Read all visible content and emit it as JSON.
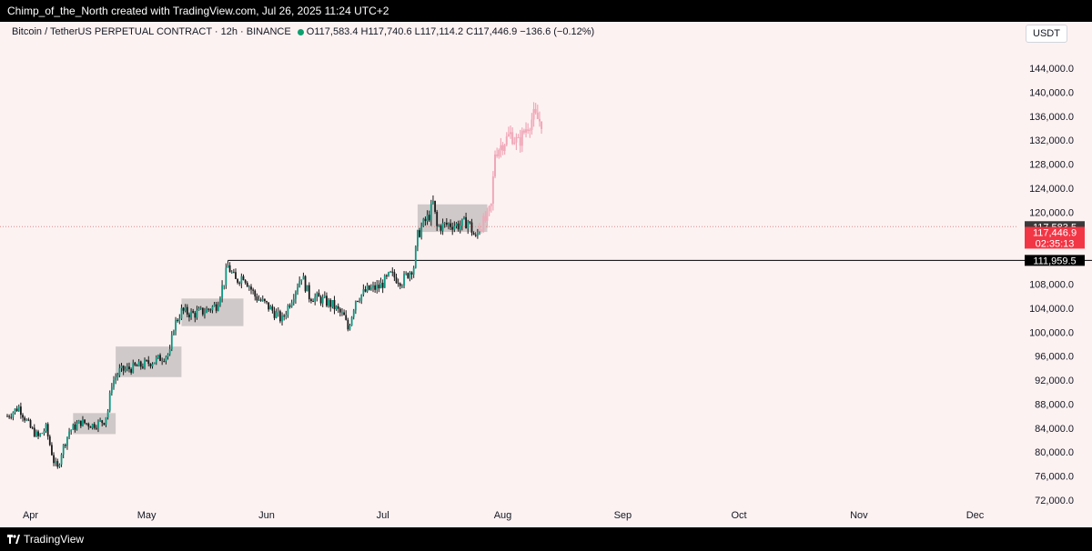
{
  "header": {
    "attribution": "Chimp_of_the_North created with TradingView.com, Jul 26, 2025 11:24 UTC+2"
  },
  "legend": {
    "symbol": "Bitcoin / TetherUS PERPETUAL CONTRACT · 12h · BINANCE",
    "ohlc": "O117,583.4  H117,740.6  L117,114.2  C117,446.9  −136.6 (−0.12%)"
  },
  "currency_button": "USDT",
  "footer": {
    "brand": "TradingView"
  },
  "chart_data": {
    "type": "candlestick",
    "interval": "12h",
    "grid": false,
    "y_axis": {
      "position": "right",
      "range": [
        70000,
        145000
      ],
      "tick_values": [
        72000,
        76000,
        80000,
        84000,
        88000,
        92000,
        96000,
        100000,
        104000,
        108000,
        112000,
        116000,
        120000,
        124000,
        128000,
        132000,
        136000,
        140000,
        144000
      ],
      "tick_labels": [
        "72,000.0",
        "76,000.0",
        "80,000.0",
        "84,000.0",
        "88,000.0",
        "92,000.0",
        "96,000.0",
        "100,000.0",
        "104,000.0",
        "108,000.0",
        "112,000.0",
        "116,000.0",
        "120,000.0",
        "124,000.0",
        "128,000.0",
        "132,000.0",
        "136,000.0",
        "140,000.0",
        "144,000.0"
      ]
    },
    "x_axis": {
      "range": [
        "2025-03-26",
        "2025-12-31"
      ],
      "tick_labels": [
        "Apr",
        "May",
        "Jun",
        "Jul",
        "Aug",
        "Sep",
        "Oct",
        "Nov",
        "Dec"
      ],
      "tick_dates": [
        "2025-04-01",
        "2025-05-01",
        "2025-06-01",
        "2025-07-01",
        "2025-08-01",
        "2025-09-01",
        "2025-10-01",
        "2025-11-01",
        "2025-12-01"
      ]
    },
    "colors": {
      "up": "#089981",
      "down": "#f23645",
      "candle_body": "#1a1a1a",
      "projection": "#f0a8b8",
      "consolidation_box": "#c8c2c2",
      "background": "#fdf2f2"
    },
    "close_series": [
      {
        "date": "2025-03-26",
        "close": 86000
      },
      {
        "date": "2025-03-29",
        "close": 87500
      },
      {
        "date": "2025-04-01",
        "close": 84000
      },
      {
        "date": "2025-04-03",
        "close": 82500
      },
      {
        "date": "2025-04-05",
        "close": 84000
      },
      {
        "date": "2025-04-07",
        "close": 78500
      },
      {
        "date": "2025-04-08",
        "close": 77200
      },
      {
        "date": "2025-04-09",
        "close": 80000
      },
      {
        "date": "2025-04-11",
        "close": 83500
      },
      {
        "date": "2025-04-14",
        "close": 85000
      },
      {
        "date": "2025-04-17",
        "close": 84500
      },
      {
        "date": "2025-04-20",
        "close": 85200
      },
      {
        "date": "2025-04-21",
        "close": 87000
      },
      {
        "date": "2025-04-22",
        "close": 91500
      },
      {
        "date": "2025-04-24",
        "close": 93500
      },
      {
        "date": "2025-04-27",
        "close": 94000
      },
      {
        "date": "2025-04-30",
        "close": 94500
      },
      {
        "date": "2025-05-04",
        "close": 95500
      },
      {
        "date": "2025-05-07",
        "close": 96500
      },
      {
        "date": "2025-05-08",
        "close": 101000
      },
      {
        "date": "2025-05-10",
        "close": 103500
      },
      {
        "date": "2025-05-13",
        "close": 103000
      },
      {
        "date": "2025-05-16",
        "close": 103500
      },
      {
        "date": "2025-05-19",
        "close": 104500
      },
      {
        "date": "2025-05-21",
        "close": 108500
      },
      {
        "date": "2025-05-22",
        "close": 111000
      },
      {
        "date": "2025-05-24",
        "close": 108500
      },
      {
        "date": "2025-05-26",
        "close": 109500
      },
      {
        "date": "2025-05-29",
        "close": 106000
      },
      {
        "date": "2025-06-01",
        "close": 104500
      },
      {
        "date": "2025-06-05",
        "close": 102000
      },
      {
        "date": "2025-06-07",
        "close": 105000
      },
      {
        "date": "2025-06-10",
        "close": 109500
      },
      {
        "date": "2025-06-12",
        "close": 106000
      },
      {
        "date": "2025-06-15",
        "close": 105500
      },
      {
        "date": "2025-06-18",
        "close": 104500
      },
      {
        "date": "2025-06-21",
        "close": 102500
      },
      {
        "date": "2025-06-22",
        "close": 100500
      },
      {
        "date": "2025-06-24",
        "close": 105500
      },
      {
        "date": "2025-06-27",
        "close": 107000
      },
      {
        "date": "2025-06-30",
        "close": 107500
      },
      {
        "date": "2025-07-03",
        "close": 109500
      },
      {
        "date": "2025-07-06",
        "close": 108500
      },
      {
        "date": "2025-07-09",
        "close": 111000
      },
      {
        "date": "2025-07-10",
        "close": 116000
      },
      {
        "date": "2025-07-11",
        "close": 117500
      },
      {
        "date": "2025-07-13",
        "close": 119500
      },
      {
        "date": "2025-07-14",
        "close": 121500
      },
      {
        "date": "2025-07-15",
        "close": 117500
      },
      {
        "date": "2025-07-18",
        "close": 118000
      },
      {
        "date": "2025-07-21",
        "close": 117800
      },
      {
        "date": "2025-07-23",
        "close": 118500
      },
      {
        "date": "2025-07-25",
        "close": 115500
      },
      {
        "date": "2025-07-26",
        "close": 117446.9
      }
    ],
    "projection_series": [
      {
        "date": "2025-07-26",
        "close": 117500
      },
      {
        "date": "2025-07-28",
        "close": 119000
      },
      {
        "date": "2025-07-29",
        "close": 121000
      },
      {
        "date": "2025-07-30",
        "close": 130000
      },
      {
        "date": "2025-08-01",
        "close": 131500
      },
      {
        "date": "2025-08-03",
        "close": 133000
      },
      {
        "date": "2025-08-05",
        "close": 131500
      },
      {
        "date": "2025-08-07",
        "close": 134000
      },
      {
        "date": "2025-08-09",
        "close": 136000
      },
      {
        "date": "2025-08-11",
        "close": 135000
      }
    ],
    "consolidation_boxes": [
      {
        "start": "2025-04-12",
        "end": "2025-04-23",
        "low": 83000,
        "high": 86500
      },
      {
        "start": "2025-04-23",
        "end": "2025-05-10",
        "low": 92500,
        "high": 97600
      },
      {
        "start": "2025-05-10",
        "end": "2025-05-26",
        "low": 101000,
        "high": 105600
      },
      {
        "start": "2025-07-10",
        "end": "2025-07-28",
        "low": 116700,
        "high": 121300
      }
    ],
    "horizontal_line": {
      "value": 111959.5,
      "label": "111,959.5",
      "start": "2025-05-22"
    },
    "price_line": {
      "value": 117583.5,
      "label": "117,583.5"
    },
    "last_price": {
      "value": 117446.9,
      "label": "117,446.9",
      "countdown": "02:35:13"
    }
  }
}
